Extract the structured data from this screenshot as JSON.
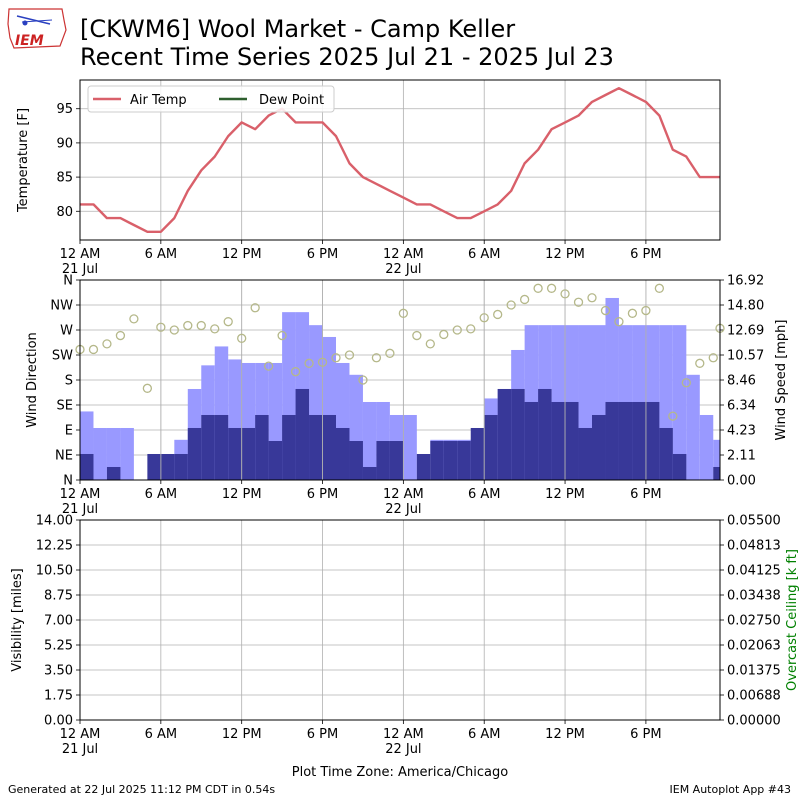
{
  "header": {
    "logo_text": "IEM",
    "title_line1": "[CKWM6] Wool Market - Camp Keller",
    "title_line2": "Recent Time Series 2025 Jul 21 - 2025 Jul 23"
  },
  "footer": {
    "generated": "Generated at 22 Jul 2025 11:12 PM CDT in 0.54s",
    "app": "IEM Autoplot App #43"
  },
  "colors": {
    "air_temp": "#d9606a",
    "dew_point": "#2e5f2e",
    "wind_gust_bar": "#9999ff",
    "wind_speed_bar": "#383899",
    "wind_dir_marker": "#b5b88a",
    "ceiling_label": "#008000",
    "grid": "#b0b0b0"
  },
  "chart_data": [
    {
      "id": "temperature",
      "type": "line",
      "ylabel": "Temperature [F]",
      "ylim": [
        75.8,
        99.2
      ],
      "yticks": [
        80,
        85,
        90,
        95
      ],
      "x_range_hours": [
        0,
        47.5
      ],
      "xtick_hours": [
        0,
        6,
        12,
        18,
        24,
        30,
        36,
        42
      ],
      "xtick_labels": [
        "12 AM",
        "6 AM",
        "12 PM",
        "6 PM",
        "12 AM",
        "6 AM",
        "12 PM",
        "6 PM"
      ],
      "xtick_sublabels": [
        "21 Jul",
        "",
        "",
        "",
        "22 Jul",
        "",
        "",
        ""
      ],
      "grid": true,
      "legend_position": "upper-left",
      "series": [
        {
          "name": "Air Temp",
          "color": "#d9606a",
          "x_hours": [
            0,
            1,
            2,
            3,
            4,
            5,
            6,
            7,
            8,
            9,
            10,
            11,
            12,
            13,
            14,
            15,
            16,
            17,
            18,
            19,
            20,
            21,
            22,
            23,
            24,
            25,
            26,
            27,
            28,
            29,
            30,
            31,
            32,
            33,
            34,
            35,
            36,
            37,
            38,
            39,
            40,
            41,
            42,
            43,
            44,
            45,
            46,
            47,
            47.5
          ],
          "values": [
            81,
            81,
            79,
            79,
            78,
            77,
            77,
            79,
            83,
            86,
            88,
            91,
            93,
            92,
            94,
            95,
            93,
            93,
            93,
            91,
            87,
            85,
            84,
            83,
            82,
            81,
            81,
            80,
            79,
            79,
            80,
            81,
            83,
            87,
            89,
            92,
            93,
            94,
            96,
            97,
            98,
            97,
            96,
            94,
            89,
            88,
            85,
            85,
            85
          ]
        },
        {
          "name": "Dew Point",
          "color": "#2e5f2e",
          "x_hours": [],
          "values": []
        }
      ]
    },
    {
      "id": "wind",
      "type": "bar",
      "ylabel": "Wind Direction",
      "y2label": "Wind Speed [mph]",
      "x_range_hours": [
        0,
        47.5
      ],
      "xtick_hours": [
        0,
        6,
        12,
        18,
        24,
        30,
        36,
        42
      ],
      "xtick_labels": [
        "12 AM",
        "6 AM",
        "12 PM",
        "6 PM",
        "12 AM",
        "6 AM",
        "12 PM",
        "6 PM"
      ],
      "xtick_sublabels": [
        "21 Jul",
        "",
        "",
        "",
        "22 Jul",
        "",
        "",
        ""
      ],
      "direction_ticks": [
        "N",
        "NE",
        "E",
        "SE",
        "S",
        "SW",
        "W",
        "NW",
        "N"
      ],
      "direction_range_deg": [
        0,
        360
      ],
      "speed_range_mph": [
        0,
        16.92
      ],
      "speed_ticks": [
        "0.00",
        "2.11",
        "4.23",
        "6.34",
        "8.46",
        "10.57",
        "12.69",
        "14.80",
        "16.92"
      ],
      "grid": true,
      "bar_start_hours": [
        0,
        1,
        2,
        3,
        4,
        5,
        6,
        7,
        8,
        9,
        10,
        11,
        12,
        13,
        14,
        15,
        16,
        17,
        18,
        19,
        20,
        21,
        22,
        23,
        24,
        25,
        26,
        27,
        28,
        29,
        30,
        31,
        32,
        33,
        34,
        35,
        36,
        37,
        38,
        39,
        40,
        41,
        42,
        43,
        44,
        45,
        46,
        47
      ],
      "bar_width_hours": 1,
      "wind_gust_mph": [
        5.8,
        4.4,
        4.4,
        4.4,
        0,
        0,
        2.1,
        3.4,
        7.7,
        9.7,
        11.3,
        10.2,
        9.9,
        9.9,
        9.9,
        14.2,
        14.2,
        13.1,
        12.1,
        9.9,
        8.9,
        6.6,
        6.6,
        5.5,
        5.5,
        0,
        3.4,
        3.4,
        3.4,
        3.4,
        6.9,
        7.7,
        11.0,
        13.1,
        13.1,
        13.1,
        13.1,
        13.1,
        13.1,
        15.4,
        13.1,
        13.1,
        13.1,
        13.1,
        13.1,
        8.9,
        5.5,
        3.4
      ],
      "wind_speed_mph": [
        2.2,
        0,
        1.1,
        0,
        0,
        2.2,
        2.2,
        2.2,
        4.4,
        5.5,
        5.5,
        4.4,
        4.4,
        5.5,
        3.3,
        5.5,
        7.7,
        5.5,
        5.5,
        4.4,
        3.3,
        1.1,
        3.3,
        3.3,
        0,
        2.2,
        3.3,
        3.3,
        3.3,
        4.4,
        5.5,
        7.7,
        7.7,
        6.6,
        7.7,
        6.6,
        6.6,
        4.4,
        5.5,
        6.6,
        6.6,
        6.6,
        6.6,
        4.4,
        2.2,
        0,
        0,
        1.1
      ],
      "wind_dir_hours": [
        0,
        1,
        2,
        3,
        4,
        5,
        6,
        7,
        8,
        9,
        10,
        11,
        12,
        13,
        14,
        15,
        16,
        17,
        18,
        19,
        20,
        21,
        22,
        23,
        24,
        25,
        26,
        27,
        28,
        29,
        30,
        31,
        32,
        33,
        34,
        35,
        36,
        37,
        38,
        39,
        40,
        41,
        42,
        43,
        44,
        45,
        46,
        47,
        47.5
      ],
      "wind_dir_deg": [
        235,
        235,
        245,
        260,
        290,
        165,
        275,
        270,
        278,
        278,
        272,
        285,
        255,
        310,
        205,
        260,
        195,
        210,
        212,
        220,
        225,
        180,
        220,
        228,
        300,
        260,
        245,
        262,
        270,
        272,
        292,
        298,
        315,
        325,
        345,
        345,
        335,
        320,
        328,
        305,
        285,
        300,
        305,
        345,
        115,
        175,
        210,
        220,
        273
      ]
    },
    {
      "id": "visibility",
      "type": "line",
      "ylabel": "Visibility [miles]",
      "y2label": "Overcast Ceiling [k ft]",
      "ylim": [
        0,
        14
      ],
      "yticks": [
        "0.00",
        "1.75",
        "3.50",
        "5.25",
        "7.00",
        "8.75",
        "10.50",
        "12.25",
        "14.00"
      ],
      "y2lim": [
        0,
        0.055
      ],
      "y2ticks": [
        "0.00000",
        "0.00688",
        "0.01375",
        "0.02063",
        "0.02750",
        "0.03438",
        "0.04125",
        "0.04813",
        "0.05500"
      ],
      "x_range_hours": [
        0,
        47.5
      ],
      "xtick_hours": [
        0,
        6,
        12,
        18,
        24,
        30,
        36,
        42
      ],
      "xtick_labels": [
        "12 AM",
        "6 AM",
        "12 PM",
        "6 PM",
        "12 AM",
        "6 AM",
        "12 PM",
        "6 PM"
      ],
      "xtick_sublabels": [
        "21 Jul",
        "",
        "",
        "",
        "22 Jul",
        "",
        "",
        ""
      ],
      "xlabel": "Plot Time Zone: America/Chicago",
      "grid": true,
      "series": []
    }
  ]
}
